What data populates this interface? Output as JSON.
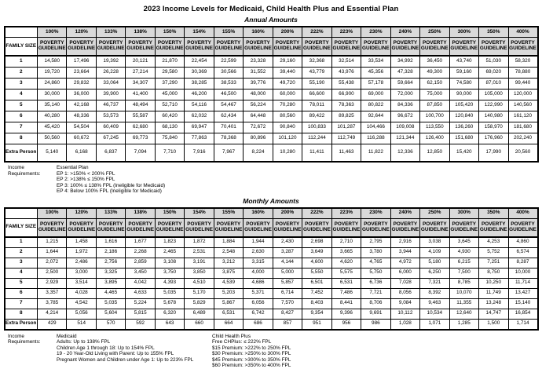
{
  "page_title": "2023 Income Levels for Medicaid, Child Health Plus and Essential Plan",
  "header": {
    "family_size": "FAMILY SIZE",
    "poverty_guideline": "POVERTY GUIDELINE"
  },
  "columns": [
    "100%",
    "120%",
    "133%",
    "138%",
    "150%",
    "154%",
    "155%",
    "160%",
    "200%",
    "222%",
    "223%",
    "230%",
    "240%",
    "250%",
    "300%",
    "350%",
    "400%"
  ],
  "annual": {
    "subtitle": "Annual Amounts",
    "rows": [
      {
        "label": "1",
        "values": [
          "14,580",
          "17,496",
          "19,392",
          "20,121",
          "21,870",
          "22,454",
          "22,599",
          "23,328",
          "29,160",
          "32,368",
          "32,514",
          "33,534",
          "34,992",
          "36,450",
          "43,740",
          "51,030",
          "58,320"
        ]
      },
      {
        "label": "2",
        "values": [
          "19,720",
          "23,664",
          "26,228",
          "27,214",
          "29,580",
          "30,369",
          "30,566",
          "31,552",
          "39,440",
          "43,779",
          "43,976",
          "45,356",
          "47,328",
          "49,300",
          "59,160",
          "69,020",
          "78,880"
        ]
      },
      {
        "label": "3",
        "values": [
          "24,860",
          "29,832",
          "33,064",
          "34,307",
          "37,290",
          "38,285",
          "38,533",
          "39,776",
          "49,720",
          "55,190",
          "55,438",
          "57,178",
          "59,664",
          "62,150",
          "74,580",
          "87,010",
          "99,440"
        ]
      },
      {
        "label": "4",
        "values": [
          "30,000",
          "36,000",
          "39,900",
          "41,400",
          "45,000",
          "46,200",
          "46,500",
          "48,000",
          "60,000",
          "66,600",
          "66,900",
          "69,000",
          "72,000",
          "75,000",
          "90,000",
          "105,000",
          "120,000"
        ]
      },
      {
        "label": "5",
        "values": [
          "35,140",
          "42,168",
          "46,737",
          "48,494",
          "52,710",
          "54,116",
          "54,467",
          "56,224",
          "70,280",
          "78,011",
          "78,363",
          "80,822",
          "84,336",
          "87,850",
          "105,420",
          "122,990",
          "140,560"
        ]
      },
      {
        "label": "6",
        "values": [
          "40,280",
          "48,336",
          "53,573",
          "55,587",
          "60,420",
          "62,032",
          "62,434",
          "64,448",
          "80,560",
          "89,422",
          "89,825",
          "92,644",
          "96,672",
          "100,700",
          "120,840",
          "140,980",
          "161,120"
        ]
      },
      {
        "label": "7",
        "values": [
          "45,420",
          "54,504",
          "60,409",
          "62,680",
          "68,130",
          "69,947",
          "70,401",
          "72,672",
          "90,840",
          "100,833",
          "101,287",
          "104,466",
          "109,008",
          "113,550",
          "136,260",
          "158,970",
          "181,680"
        ]
      },
      {
        "label": "8",
        "values": [
          "50,560",
          "60,672",
          "67,245",
          "69,773",
          "75,840",
          "77,863",
          "78,368",
          "80,896",
          "101,120",
          "112,244",
          "112,749",
          "116,288",
          "121,344",
          "126,400",
          "151,680",
          "176,960",
          "202,240"
        ]
      },
      {
        "label": "Extra Person",
        "values": [
          "5,140",
          "6,168",
          "6,837",
          "7,094",
          "7,710",
          "7,916",
          "7,967",
          "8,224",
          "10,280",
          "11,411",
          "11,463",
          "11,822",
          "12,336",
          "12,850",
          "15,420",
          "17,990",
          "20,560"
        ]
      }
    ],
    "notes": {
      "label": "Income Requirements:",
      "title": "Essential Plan",
      "lines": [
        "EP 1: >150% < 200% FPL",
        "EP 2: >138% ≤ 150% FPL",
        "EP 3: 100% ≤ 138% FPL (Ineligible for Medicaid)",
        "EP 4: Below 100% FPL (Ineligible for Medicaid)"
      ]
    }
  },
  "monthly": {
    "subtitle": "Monthly Amounts",
    "rows": [
      {
        "label": "1",
        "values": [
          "1,215",
          "1,458",
          "1,616",
          "1,677",
          "1,823",
          "1,872",
          "1,884",
          "1,944",
          "2,430",
          "2,698",
          "2,710",
          "2,795",
          "2,916",
          "3,038",
          "3,645",
          "4,253",
          "4,860"
        ]
      },
      {
        "label": "2",
        "values": [
          "1,644",
          "1,972",
          "2,186",
          "2,268",
          "2,465",
          "2,531",
          "2,548",
          "2,630",
          "3,287",
          "3,649",
          "3,665",
          "3,780",
          "3,944",
          "4,109",
          "4,930",
          "5,752",
          "6,574"
        ]
      },
      {
        "label": "3",
        "values": [
          "2,072",
          "2,486",
          "2,756",
          "2,859",
          "3,108",
          "3,191",
          "3,212",
          "3,315",
          "4,144",
          "4,600",
          "4,620",
          "4,765",
          "4,972",
          "5,180",
          "6,215",
          "7,251",
          "8,287"
        ]
      },
      {
        "label": "4",
        "values": [
          "2,500",
          "3,000",
          "3,325",
          "3,450",
          "3,750",
          "3,850",
          "3,875",
          "4,000",
          "5,000",
          "5,550",
          "5,575",
          "5,750",
          "6,000",
          "6,250",
          "7,500",
          "8,750",
          "10,000"
        ]
      },
      {
        "label": "5",
        "values": [
          "2,929",
          "3,514",
          "3,895",
          "4,042",
          "4,393",
          "4,510",
          "4,539",
          "4,686",
          "5,857",
          "6,501",
          "6,531",
          "6,736",
          "7,028",
          "7,321",
          "8,785",
          "10,250",
          "11,714"
        ]
      },
      {
        "label": "6",
        "values": [
          "3,357",
          "4,028",
          "4,465",
          "4,633",
          "5,035",
          "5,170",
          "5,203",
          "5,371",
          "6,714",
          "7,452",
          "7,486",
          "7,721",
          "8,056",
          "8,392",
          "10,070",
          "11,749",
          "13,427"
        ]
      },
      {
        "label": "7",
        "values": [
          "3,785",
          "4,542",
          "5,035",
          "5,224",
          "5,678",
          "5,829",
          "5,867",
          "6,056",
          "7,570",
          "8,403",
          "8,441",
          "8,706",
          "9,084",
          "9,463",
          "11,355",
          "13,248",
          "15,140"
        ]
      },
      {
        "label": "8",
        "values": [
          "4,214",
          "5,056",
          "5,604",
          "5,815",
          "6,320",
          "6,489",
          "6,531",
          "6,742",
          "8,427",
          "9,354",
          "9,396",
          "9,691",
          "10,112",
          "10,534",
          "12,640",
          "14,747",
          "16,854"
        ]
      },
      {
        "label": "Extra Person",
        "values": [
          "429",
          "514",
          "570",
          "592",
          "643",
          "660",
          "664",
          "686",
          "857",
          "951",
          "956",
          "986",
          "1,028",
          "1,071",
          "1,285",
          "1,500",
          "1,714"
        ]
      }
    ],
    "notes": {
      "label": "Income Requirements:",
      "medicaid": {
        "title": "Medicaid",
        "lines": [
          "Adults: Up to 138% FPL",
          "Children Age 1 through 18: Up to 154% FPL",
          "19 - 20 Year-Old Living with Parent: Up to 155% FPL",
          "Pregnant Women and Children under Age 1: Up to 223% FPL"
        ]
      },
      "chp": {
        "title": "Child Health Plus",
        "lines": [
          "Free CHPlus: ≤ 222% FPL",
          "$15 Premium: >222% to 250% FPL",
          "$30 Premium: >250% to 300% FPL",
          "$45 Premium: >300% to 350% FPL",
          "$60 Premium: >350% to 400% FPL"
        ]
      }
    }
  }
}
